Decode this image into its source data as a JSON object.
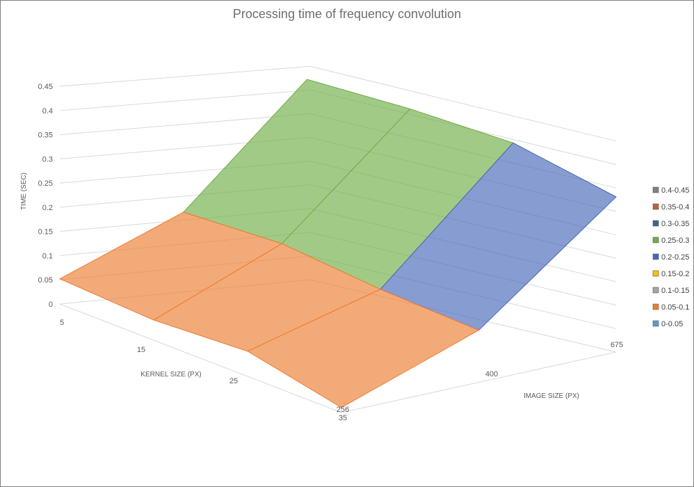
{
  "chart_data": {
    "type": "surface",
    "title": "Processing time of frequency convolution",
    "x_axis": {
      "label": "IMAGE SIZE (PX)",
      "categories": [
        "256",
        "400",
        "675"
      ]
    },
    "y_axis": {
      "label": "KERNEL SIZE (PX)",
      "categories": [
        "5",
        "15",
        "25",
        "35"
      ]
    },
    "z_axis": {
      "label": "TIME (SEC)",
      "range": [
        0,
        0.45
      ],
      "ticks": [
        "0",
        "0.05",
        "0.1",
        "0.15",
        "0.2",
        "0.25",
        "0.3",
        "0.35",
        "0.4",
        "0.45"
      ]
    },
    "values": [
      [
        0.05,
        0.13,
        0.37
      ],
      [
        0.04,
        0.14,
        0.385
      ],
      [
        0.05,
        0.12,
        0.39
      ],
      [
        0.01,
        0.11,
        0.35
      ]
    ],
    "legend": [
      {
        "label": "0.4-0.45",
        "color": "#7f7f7f"
      },
      {
        "label": "0.35-0.4",
        "color": "#c0603a"
      },
      {
        "label": "0.3-0.35",
        "color": "#3e6592"
      },
      {
        "label": "0.25-0.3",
        "color": "#70ad47"
      },
      {
        "label": "0.2-0.25",
        "color": "#4667b8"
      },
      {
        "label": "0.15-0.2",
        "color": "#ffc000"
      },
      {
        "label": "0.1-0.15",
        "color": "#a5a5a5"
      },
      {
        "label": "0.05-0.1",
        "color": "#ed7d31"
      },
      {
        "label": "0-0.05",
        "color": "#5b9bd5"
      }
    ],
    "legend_position": "right",
    "grid": true
  }
}
